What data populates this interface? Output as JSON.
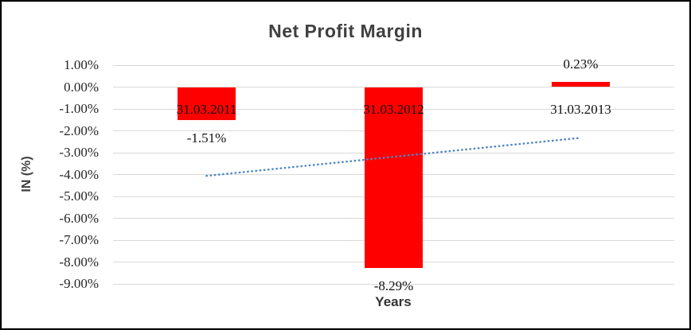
{
  "chart_data": {
    "type": "bar",
    "title": "Net Profit Margin",
    "categories": [
      "31.03.2011",
      "31.03.2012",
      "31.03.2013"
    ],
    "values": [
      -1.51,
      -8.29,
      0.23
    ],
    "data_labels": [
      "-1.51%",
      "-8.29%",
      "0.23%"
    ],
    "xlabel": "Years",
    "ylabel": "IN (%)",
    "ylim": [
      -9,
      1
    ],
    "ytick_step": 1,
    "ytick_labels": [
      "1.00%",
      "0.00%",
      "-1.00%",
      "-2.00%",
      "-3.00%",
      "-4.00%",
      "-5.00%",
      "-6.00%",
      "-7.00%",
      "-8.00%",
      "-9.00%"
    ],
    "grid": true,
    "legend": "none",
    "trendline": {
      "style": "dotted",
      "start_value": -4.06,
      "end_value": -2.32
    },
    "colors": {
      "bar": "#fe0000",
      "trendline": "#4e86c4",
      "gridline": "#d9d9d9",
      "title_text": "#404040",
      "tick_text": "#262626",
      "label_text": "#111111"
    }
  }
}
